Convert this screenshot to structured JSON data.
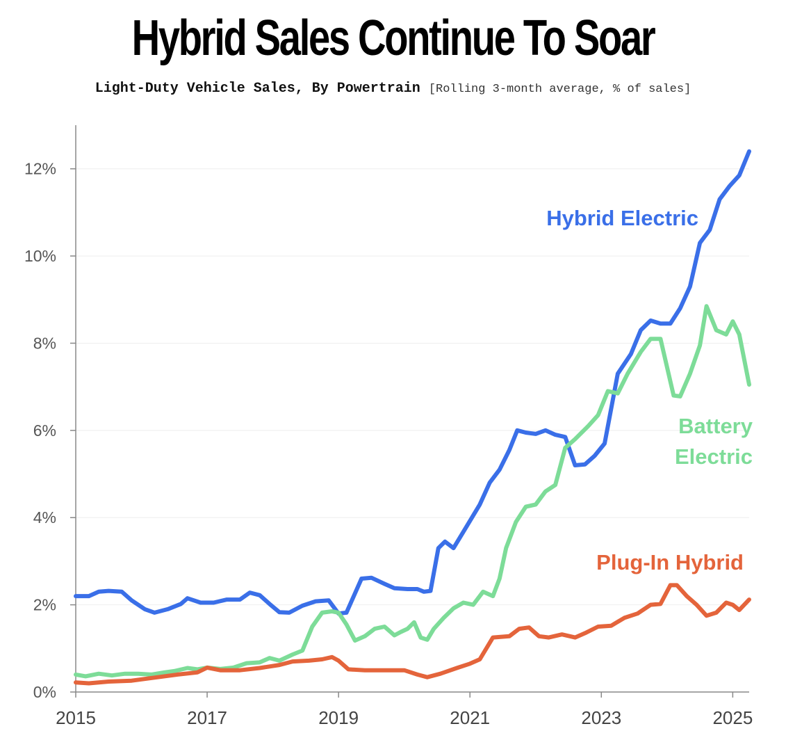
{
  "title": "Hybrid Sales Continue To Soar",
  "subtitle_main": "Light-Duty Vehicle Sales, By Powertrain",
  "subtitle_note": "[Rolling 3-month average, % of sales]",
  "colors": {
    "hybrid": "#3a6fe8",
    "battery": "#7ddc98",
    "plugin": "#e4643b",
    "axis": "#888888",
    "grid": "#eeeeee"
  },
  "chart_data": {
    "type": "line",
    "title": "Hybrid Sales Continue To Soar",
    "subtitle": "Light-Duty Vehicle Sales, By Powertrain [Rolling 3-month average, % of sales]",
    "xlabel": "",
    "ylabel": "% of sales",
    "xlim": [
      2015,
      2025.25
    ],
    "ylim": [
      0,
      13
    ],
    "y_ticks": [
      0,
      2,
      4,
      6,
      8,
      10,
      12
    ],
    "y_tick_labels": [
      "0%",
      "2%",
      "4%",
      "6%",
      "8%",
      "10%",
      "12%"
    ],
    "x_ticks": [
      2015,
      2017,
      2019,
      2021,
      2023,
      2025
    ],
    "x_tick_labels": [
      "2015",
      "2017",
      "2019",
      "2021",
      "2023",
      "2025"
    ],
    "series": [
      {
        "name": "Hybrid Electric",
        "label_lines": [
          "Hybrid Electric"
        ],
        "color_key": "hybrid",
        "points": [
          [
            2015.0,
            2.2
          ],
          [
            2015.2,
            2.2
          ],
          [
            2015.35,
            2.3
          ],
          [
            2015.5,
            2.32
          ],
          [
            2015.7,
            2.3
          ],
          [
            2015.85,
            2.1
          ],
          [
            2016.05,
            1.9
          ],
          [
            2016.2,
            1.82
          ],
          [
            2016.4,
            1.9
          ],
          [
            2016.6,
            2.02
          ],
          [
            2016.7,
            2.15
          ],
          [
            2016.9,
            2.05
          ],
          [
            2017.1,
            2.05
          ],
          [
            2017.3,
            2.12
          ],
          [
            2017.5,
            2.12
          ],
          [
            2017.65,
            2.28
          ],
          [
            2017.8,
            2.22
          ],
          [
            2017.95,
            2.02
          ],
          [
            2018.1,
            1.83
          ],
          [
            2018.25,
            1.82
          ],
          [
            2018.45,
            1.98
          ],
          [
            2018.65,
            2.08
          ],
          [
            2018.85,
            2.1
          ],
          [
            2019.0,
            1.8
          ],
          [
            2019.12,
            1.82
          ],
          [
            2019.35,
            2.6
          ],
          [
            2019.5,
            2.62
          ],
          [
            2019.7,
            2.48
          ],
          [
            2019.85,
            2.38
          ],
          [
            2020.05,
            2.36
          ],
          [
            2020.2,
            2.36
          ],
          [
            2020.3,
            2.3
          ],
          [
            2020.4,
            2.32
          ],
          [
            2020.52,
            3.3
          ],
          [
            2020.62,
            3.45
          ],
          [
            2020.75,
            3.3
          ],
          [
            2020.95,
            3.8
          ],
          [
            2021.15,
            4.3
          ],
          [
            2021.3,
            4.8
          ],
          [
            2021.45,
            5.1
          ],
          [
            2021.6,
            5.55
          ],
          [
            2021.72,
            6.0
          ],
          [
            2021.85,
            5.95
          ],
          [
            2022.0,
            5.92
          ],
          [
            2022.15,
            6.0
          ],
          [
            2022.3,
            5.9
          ],
          [
            2022.45,
            5.85
          ],
          [
            2022.6,
            5.2
          ],
          [
            2022.75,
            5.22
          ],
          [
            2022.9,
            5.42
          ],
          [
            2023.05,
            5.7
          ],
          [
            2023.25,
            7.3
          ],
          [
            2023.45,
            7.75
          ],
          [
            2023.6,
            8.3
          ],
          [
            2023.75,
            8.52
          ],
          [
            2023.9,
            8.45
          ],
          [
            2024.05,
            8.45
          ],
          [
            2024.2,
            8.8
          ],
          [
            2024.35,
            9.3
          ],
          [
            2024.5,
            10.3
          ],
          [
            2024.65,
            10.6
          ],
          [
            2024.8,
            11.3
          ],
          [
            2024.95,
            11.6
          ],
          [
            2025.1,
            11.85
          ],
          [
            2025.25,
            12.4
          ]
        ]
      },
      {
        "name": "Battery Electric",
        "label_lines": [
          "Battery",
          "Electric"
        ],
        "color_key": "battery",
        "points": [
          [
            2015.0,
            0.4
          ],
          [
            2015.15,
            0.36
          ],
          [
            2015.35,
            0.42
          ],
          [
            2015.55,
            0.38
          ],
          [
            2015.75,
            0.42
          ],
          [
            2015.95,
            0.42
          ],
          [
            2016.15,
            0.4
          ],
          [
            2016.35,
            0.45
          ],
          [
            2016.5,
            0.48
          ],
          [
            2016.7,
            0.55
          ],
          [
            2016.85,
            0.52
          ],
          [
            2017.0,
            0.56
          ],
          [
            2017.2,
            0.53
          ],
          [
            2017.4,
            0.56
          ],
          [
            2017.6,
            0.66
          ],
          [
            2017.8,
            0.68
          ],
          [
            2017.95,
            0.78
          ],
          [
            2018.1,
            0.72
          ],
          [
            2018.3,
            0.86
          ],
          [
            2018.45,
            0.95
          ],
          [
            2018.6,
            1.5
          ],
          [
            2018.75,
            1.82
          ],
          [
            2018.9,
            1.85
          ],
          [
            2019.0,
            1.82
          ],
          [
            2019.12,
            1.55
          ],
          [
            2019.25,
            1.18
          ],
          [
            2019.4,
            1.28
          ],
          [
            2019.55,
            1.45
          ],
          [
            2019.7,
            1.5
          ],
          [
            2019.85,
            1.3
          ],
          [
            2019.95,
            1.38
          ],
          [
            2020.05,
            1.45
          ],
          [
            2020.15,
            1.6
          ],
          [
            2020.25,
            1.25
          ],
          [
            2020.35,
            1.2
          ],
          [
            2020.45,
            1.45
          ],
          [
            2020.6,
            1.7
          ],
          [
            2020.75,
            1.92
          ],
          [
            2020.9,
            2.05
          ],
          [
            2021.05,
            2.0
          ],
          [
            2021.2,
            2.3
          ],
          [
            2021.35,
            2.2
          ],
          [
            2021.45,
            2.6
          ],
          [
            2021.55,
            3.3
          ],
          [
            2021.7,
            3.9
          ],
          [
            2021.85,
            4.25
          ],
          [
            2022.0,
            4.3
          ],
          [
            2022.15,
            4.6
          ],
          [
            2022.3,
            4.75
          ],
          [
            2022.45,
            5.6
          ],
          [
            2022.6,
            5.8
          ],
          [
            2022.8,
            6.1
          ],
          [
            2022.95,
            6.35
          ],
          [
            2023.1,
            6.9
          ],
          [
            2023.25,
            6.85
          ],
          [
            2023.4,
            7.3
          ],
          [
            2023.6,
            7.8
          ],
          [
            2023.75,
            8.1
          ],
          [
            2023.9,
            8.1
          ],
          [
            2024.1,
            6.8
          ],
          [
            2024.2,
            6.78
          ],
          [
            2024.35,
            7.3
          ],
          [
            2024.5,
            7.95
          ],
          [
            2024.6,
            8.85
          ],
          [
            2024.75,
            8.3
          ],
          [
            2024.9,
            8.2
          ],
          [
            2025.0,
            8.5
          ],
          [
            2025.1,
            8.2
          ],
          [
            2025.25,
            7.05
          ]
        ]
      },
      {
        "name": "Plug-In Hybrid",
        "label_lines": [
          "Plug-In Hybrid"
        ],
        "color_key": "plugin",
        "points": [
          [
            2015.0,
            0.22
          ],
          [
            2015.2,
            0.2
          ],
          [
            2015.5,
            0.24
          ],
          [
            2015.85,
            0.26
          ],
          [
            2016.2,
            0.33
          ],
          [
            2016.55,
            0.4
          ],
          [
            2016.85,
            0.45
          ],
          [
            2017.0,
            0.56
          ],
          [
            2017.2,
            0.5
          ],
          [
            2017.5,
            0.5
          ],
          [
            2017.8,
            0.55
          ],
          [
            2018.1,
            0.62
          ],
          [
            2018.3,
            0.7
          ],
          [
            2018.55,
            0.72
          ],
          [
            2018.75,
            0.75
          ],
          [
            2018.9,
            0.8
          ],
          [
            2019.0,
            0.72
          ],
          [
            2019.15,
            0.52
          ],
          [
            2019.4,
            0.5
          ],
          [
            2019.7,
            0.5
          ],
          [
            2020.0,
            0.5
          ],
          [
            2020.2,
            0.4
          ],
          [
            2020.35,
            0.34
          ],
          [
            2020.55,
            0.42
          ],
          [
            2020.8,
            0.55
          ],
          [
            2021.0,
            0.65
          ],
          [
            2021.15,
            0.75
          ],
          [
            2021.35,
            1.25
          ],
          [
            2021.6,
            1.28
          ],
          [
            2021.75,
            1.45
          ],
          [
            2021.9,
            1.48
          ],
          [
            2022.05,
            1.28
          ],
          [
            2022.2,
            1.25
          ],
          [
            2022.4,
            1.32
          ],
          [
            2022.6,
            1.25
          ],
          [
            2022.75,
            1.35
          ],
          [
            2022.95,
            1.5
          ],
          [
            2023.15,
            1.52
          ],
          [
            2023.35,
            1.7
          ],
          [
            2023.55,
            1.8
          ],
          [
            2023.75,
            2.0
          ],
          [
            2023.9,
            2.02
          ],
          [
            2024.05,
            2.45
          ],
          [
            2024.15,
            2.45
          ],
          [
            2024.3,
            2.2
          ],
          [
            2024.45,
            2.0
          ],
          [
            2024.6,
            1.75
          ],
          [
            2024.75,
            1.82
          ],
          [
            2024.9,
            2.05
          ],
          [
            2025.0,
            2.0
          ],
          [
            2025.1,
            1.88
          ],
          [
            2025.25,
            2.12
          ]
        ]
      }
    ]
  }
}
